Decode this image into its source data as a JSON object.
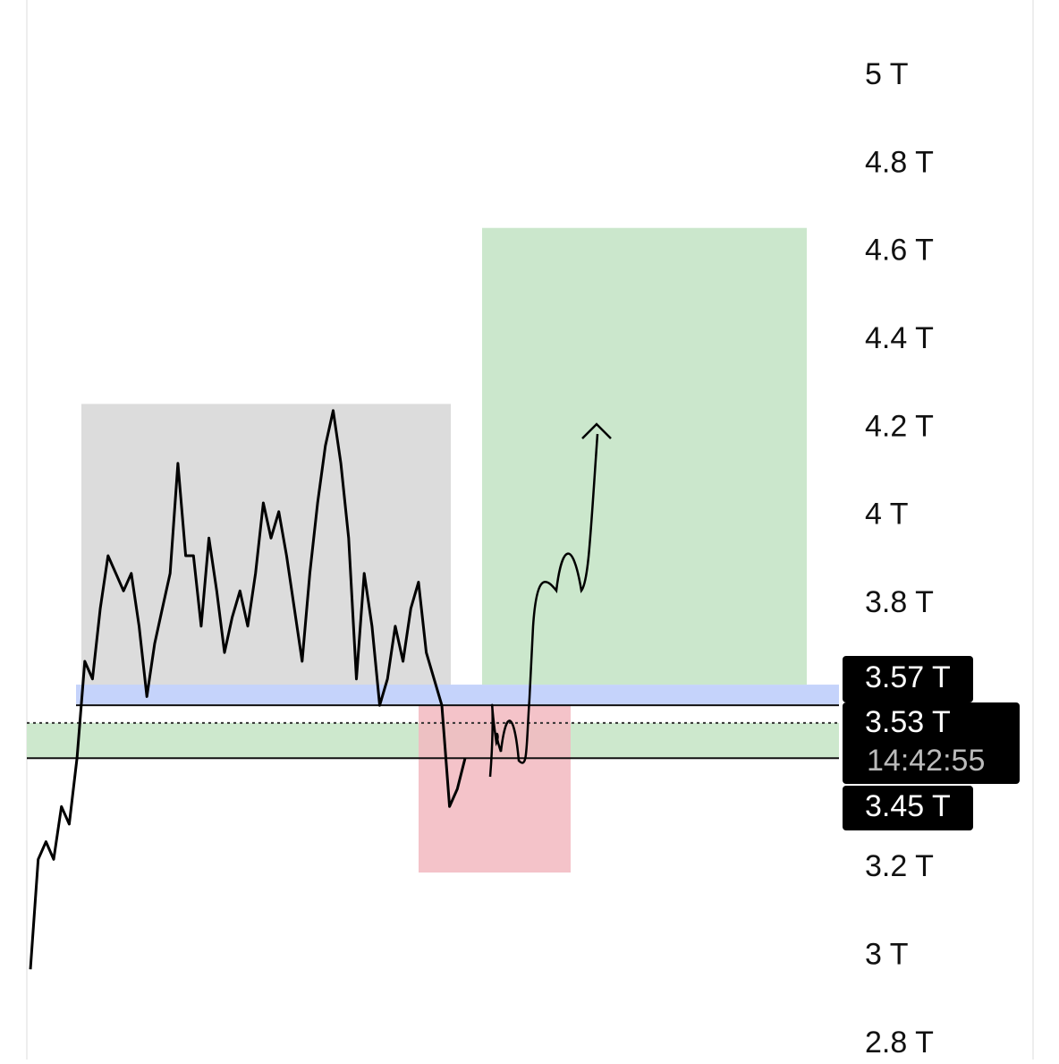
{
  "chart_data": {
    "type": "line",
    "ylim": [
      2.765,
      5.173
    ],
    "yticks": [
      {
        "value": 5,
        "label": "5 T"
      },
      {
        "value": 4.8,
        "label": "4.8 T"
      },
      {
        "value": 4.6,
        "label": "4.6 T"
      },
      {
        "value": 4.4,
        "label": "4.4 T"
      },
      {
        "value": 4.2,
        "label": "4.2 T"
      },
      {
        "value": 4,
        "label": "4 T"
      },
      {
        "value": 3.8,
        "label": "3.8 T"
      },
      {
        "value": 3.2,
        "label": "3.2 T"
      },
      {
        "value": 3,
        "label": "3 T"
      },
      {
        "value": 2.8,
        "label": "2.8 T"
      }
    ],
    "color": "#000000",
    "values": [
      2.97,
      3.22,
      3.26,
      3.22,
      3.34,
      3.3,
      3.45,
      3.67,
      3.63,
      3.79,
      3.91,
      3.87,
      3.83,
      3.87,
      3.75,
      3.59,
      3.71,
      3.79,
      3.87,
      4.12,
      3.91,
      3.91,
      3.75,
      3.95,
      3.83,
      3.69,
      3.77,
      3.83,
      3.75,
      3.87,
      4.03,
      3.95,
      4.01,
      3.91,
      3.79,
      3.67,
      3.87,
      4.03,
      4.16,
      4.24,
      4.12,
      3.95,
      3.63,
      3.87,
      3.75,
      3.57,
      3.63,
      3.75,
      3.67,
      3.79,
      3.85,
      3.69,
      3.63,
      3.57,
      3.34,
      3.38,
      3.45
    ],
    "zones": [
      {
        "from": 3.57,
        "to": 4.255,
        "color": "#dcdcdc"
      },
      {
        "from": 3.57,
        "to": 3.617,
        "color": "#c5d3fb"
      },
      {
        "from": 3.45,
        "to": 3.53,
        "color": "#cde8cd"
      },
      {
        "from": 3.19,
        "to": 3.57,
        "color": "#f2b8bf"
      },
      {
        "from": 3.617,
        "to": 4.655,
        "color": "#cbe7cc"
      }
    ],
    "price_labels": [
      {
        "value": 3.57,
        "label": "3.57 T"
      },
      {
        "value": 3.53,
        "label": "3.53 T"
      },
      {
        "value": 3.45,
        "label": "3.45 T"
      }
    ],
    "countdown": "14:42:55"
  }
}
